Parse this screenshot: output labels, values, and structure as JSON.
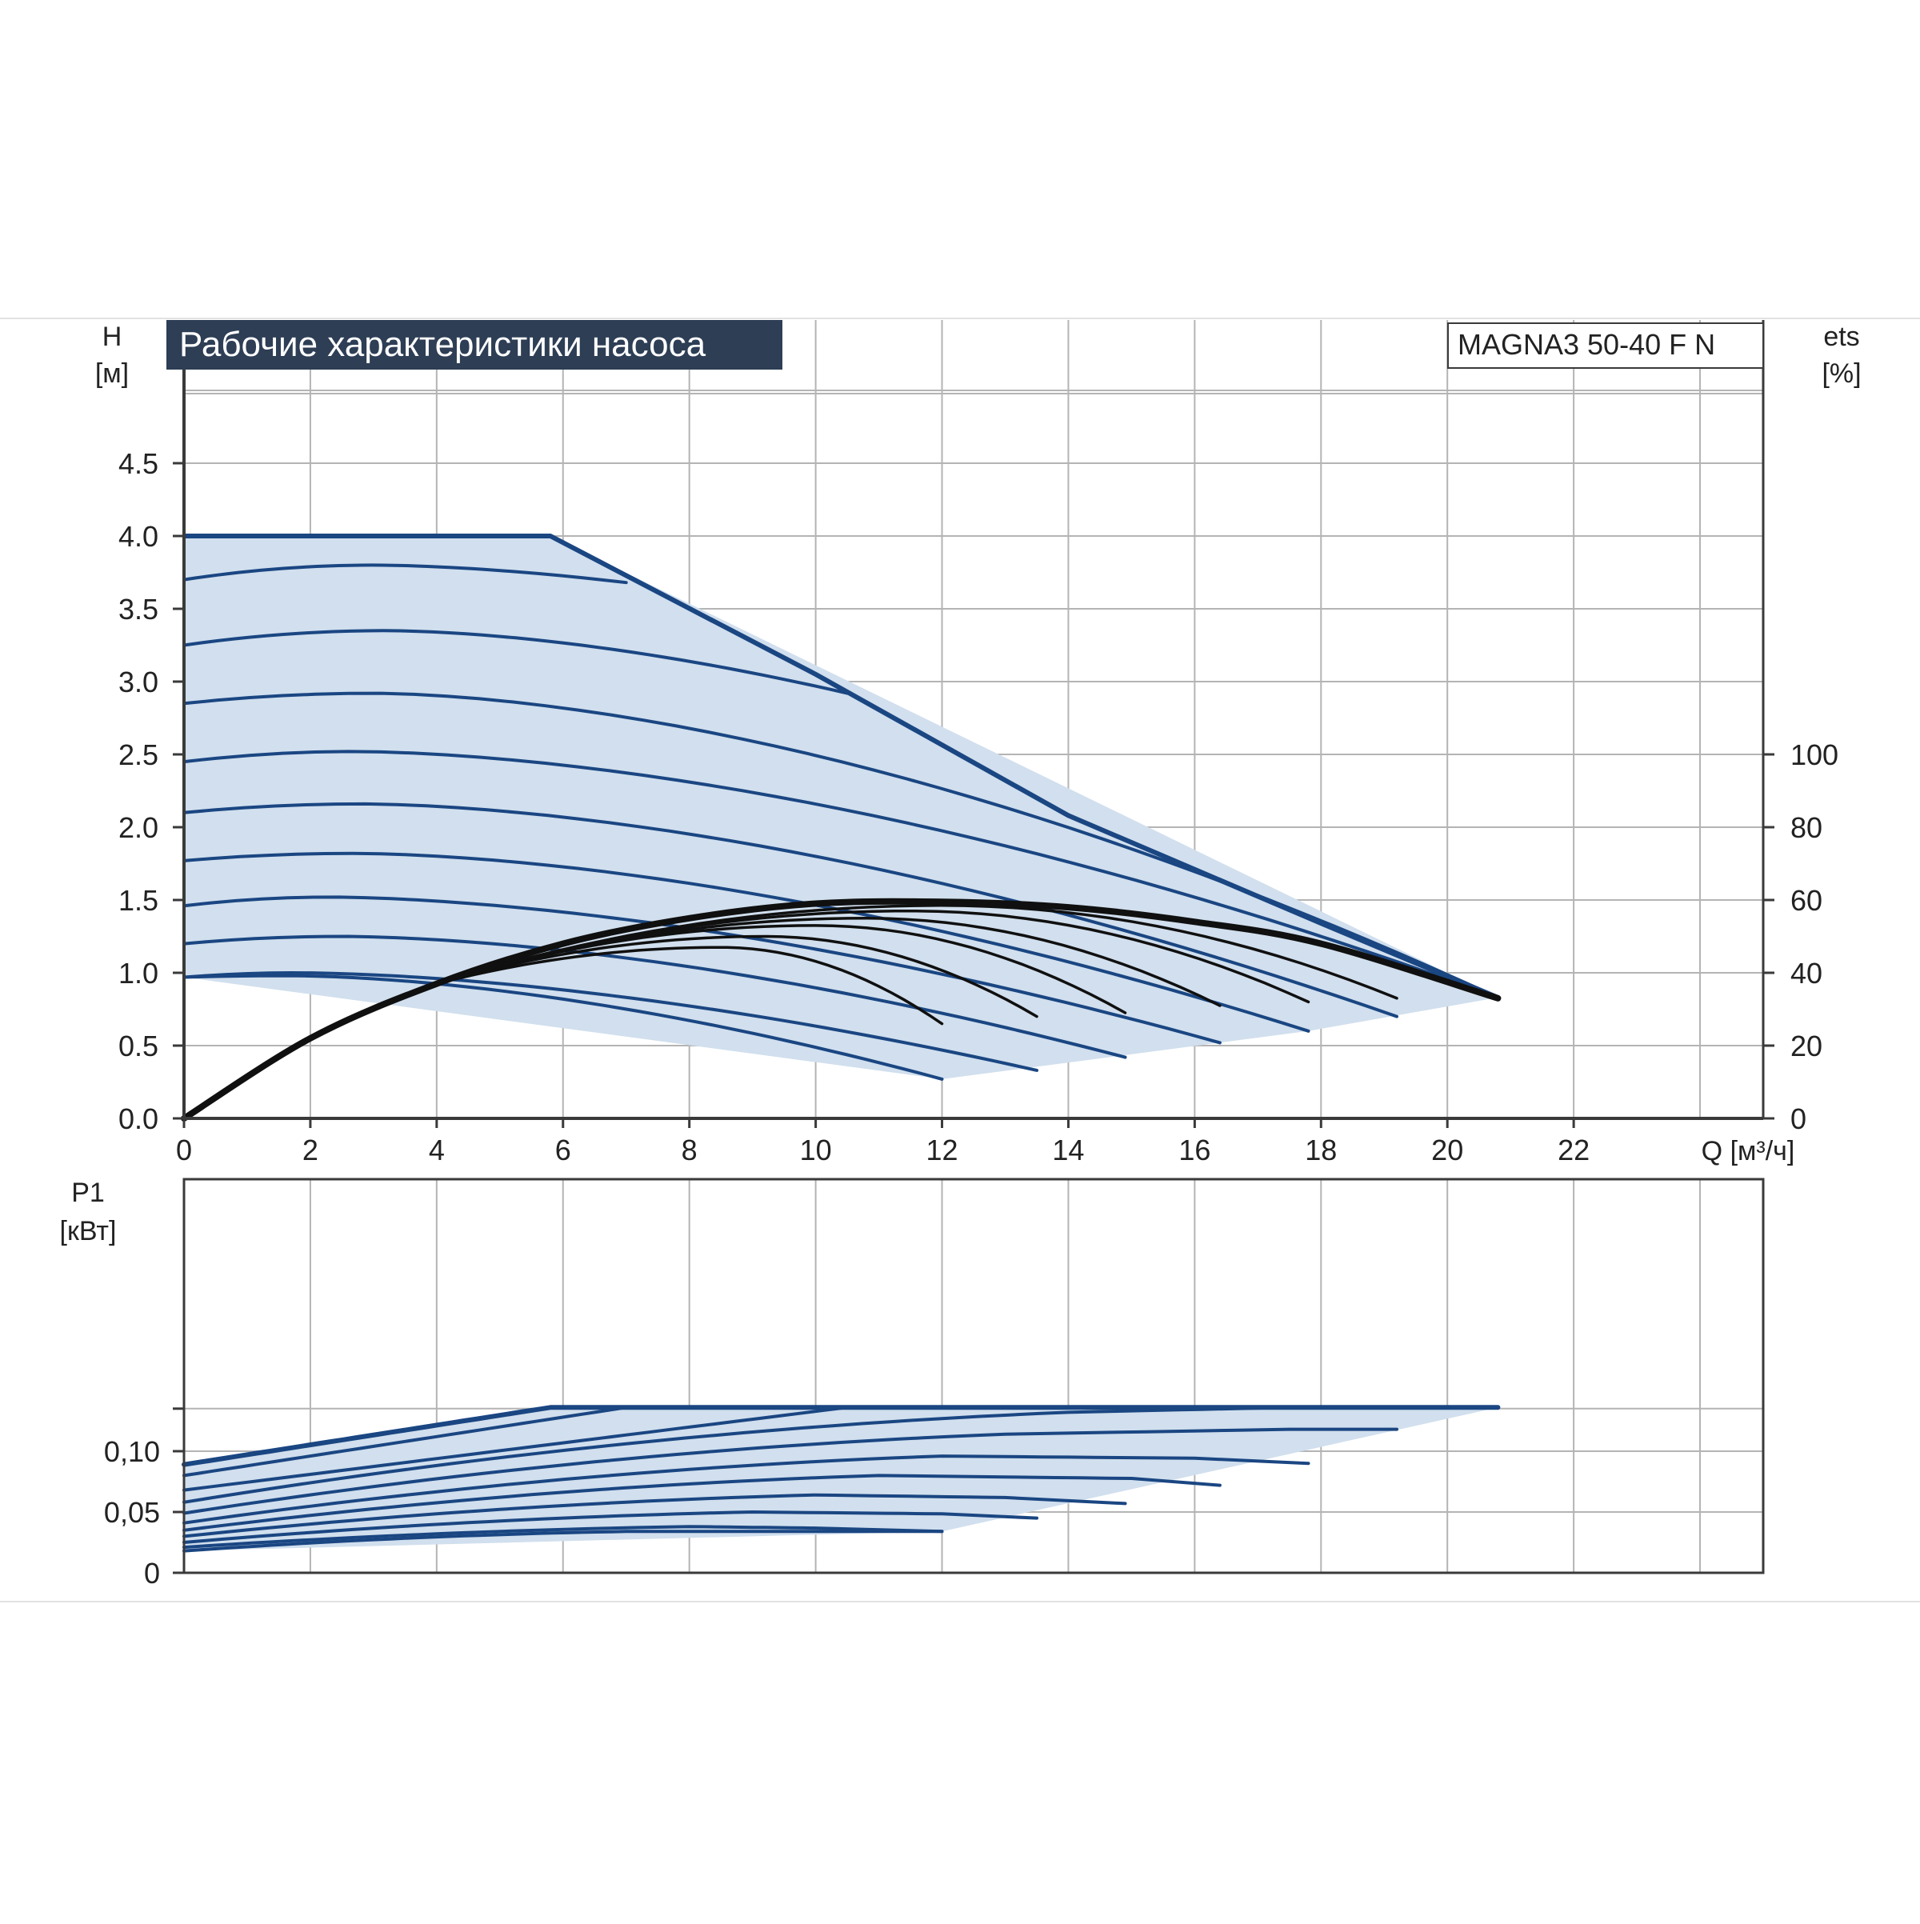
{
  "colors": {
    "grid": "#b4b4b4",
    "frame": "#3a3a3a",
    "envelope_fill": "#d1dfee",
    "curve_blue": "#1a4682",
    "curve_black": "#101010",
    "title_bg": "#2d3e55",
    "title_text": "#ffffff",
    "text": "#222222"
  },
  "title": "Рабочие характеристики насоса",
  "model": "MAGNA3 50-40 F N",
  "chart_data": [
    {
      "id": "head",
      "type": "line",
      "y_label": "H",
      "y_unit": "[м]",
      "y2_label": "ets",
      "y2_unit": "[%]",
      "x_label": "Q [м³/ч]",
      "xlim": [
        0,
        25
      ],
      "ylim": [
        0,
        5
      ],
      "y2lim": [
        0,
        125
      ],
      "grid": true,
      "x_ticks": [
        "0",
        "2",
        "4",
        "6",
        "8",
        "10",
        "12",
        "14",
        "16",
        "18",
        "20",
        "22"
      ],
      "y_ticks": [
        "0.0",
        "0.5",
        "1.0",
        "1.5",
        "2.0",
        "2.5",
        "3.0",
        "3.5",
        "4.0",
        "4.5"
      ],
      "y2_ticks": [
        "0",
        "20",
        "40",
        "60",
        "80",
        "100"
      ],
      "envelope": [
        [
          0,
          4.0
        ],
        [
          5.8,
          4.0
        ],
        [
          20.8,
          0.83
        ],
        [
          17.8,
          0.6
        ],
        [
          12.0,
          0.27
        ],
        [
          0,
          0.97
        ]
      ],
      "max_curve": [
        [
          0,
          4.0
        ],
        [
          5.8,
          4.0
        ],
        [
          10.0,
          3.05
        ],
        [
          14.0,
          2.08
        ],
        [
          18.0,
          1.34
        ],
        [
          20.8,
          0.83
        ]
      ],
      "head_curves": [
        {
          "h0": 3.7,
          "hmax": 3.8,
          "qpk": 3.0,
          "qend": 7.0
        },
        {
          "h0": 3.25,
          "hmax": 3.35,
          "qpk": 3.2,
          "qend": 10.5
        },
        {
          "h0": 2.85,
          "hmax": 2.92,
          "qpk": 3.0,
          "qend": 20.8
        },
        {
          "h0": 2.45,
          "hmax": 2.52,
          "qpk": 2.7,
          "qend": 20.8
        },
        {
          "h0": 2.1,
          "hmax": 2.16,
          "qpk": 2.8,
          "qend": 19.2
        },
        {
          "h0": 1.77,
          "hmax": 1.82,
          "qpk": 2.7,
          "qend": 17.8
        },
        {
          "h0": 1.46,
          "hmax": 1.52,
          "qpk": 2.3,
          "qend": 16.4
        },
        {
          "h0": 1.2,
          "hmax": 1.25,
          "qpk": 2.5,
          "qend": 14.9
        },
        {
          "h0": 0.97,
          "hmax": 1.0,
          "qpk": 1.8,
          "qend": 13.5
        },
        {
          "h0": 0.97,
          "hmax": 0.98,
          "qpk": 1.7,
          "qend": 12.0
        }
      ],
      "efficiency_max": [
        [
          0,
          0
        ],
        [
          2,
          22
        ],
        [
          4,
          37
        ],
        [
          6,
          48
        ],
        [
          8,
          55
        ],
        [
          10,
          59
        ],
        [
          12,
          59.5
        ],
        [
          14,
          58
        ],
        [
          16,
          54
        ],
        [
          18,
          48
        ],
        [
          20.8,
          33
        ]
      ],
      "efficiency_curves": [
        {
          "peak": 47,
          "qpk": 8.5,
          "qend": 12.0,
          "yend": 26
        },
        {
          "peak": 50,
          "qpk": 9.2,
          "qend": 13.5,
          "yend": 28
        },
        {
          "peak": 53,
          "qpk": 10.0,
          "qend": 14.9,
          "yend": 29
        },
        {
          "peak": 55,
          "qpk": 10.8,
          "qend": 16.4,
          "yend": 31
        },
        {
          "peak": 57,
          "qpk": 11.5,
          "qend": 17.8,
          "yend": 32
        },
        {
          "peak": 58.5,
          "qpk": 12.0,
          "qend": 19.2,
          "yend": 33
        }
      ]
    },
    {
      "id": "power",
      "type": "line",
      "y_label": "P1",
      "y_unit": "[кВт]",
      "xlim": [
        0,
        25
      ],
      "ylim": [
        0,
        0.148
      ],
      "grid": true,
      "y_ticks": [
        "0",
        "0,05",
        "0,10"
      ],
      "envelope": [
        [
          0,
          0.089
        ],
        [
          5.8,
          0.136
        ],
        [
          20.8,
          0.136
        ],
        [
          12.0,
          0.034
        ],
        [
          0,
          0.018
        ]
      ],
      "power_curves": [
        {
          "p0": 0.089,
          "q1": 5.8,
          "p1": 0.136,
          "q2": 5.8,
          "pend": 0.136,
          "qend": 20.8
        },
        {
          "p0": 0.08,
          "q1": 7.0,
          "p1": 0.136,
          "q2": 7.0,
          "pend": 0.136,
          "qend": 20.8
        },
        {
          "p0": 0.068,
          "q1": 10.5,
          "p1": 0.136,
          "q2": 10.5,
          "pend": 0.136,
          "qend": 20.8
        },
        {
          "p0": 0.058,
          "q1": 14.0,
          "p1": 0.132,
          "q2": 17.5,
          "pend": 0.136,
          "qend": 20.8
        },
        {
          "p0": 0.049,
          "q1": 13.0,
          "p1": 0.114,
          "q2": 17.5,
          "pend": 0.118,
          "qend": 19.2
        },
        {
          "p0": 0.041,
          "q1": 12.0,
          "p1": 0.096,
          "q2": 16.0,
          "pend": 0.09,
          "qend": 17.8
        },
        {
          "p0": 0.035,
          "q1": 11.0,
          "p1": 0.08,
          "q2": 15.0,
          "pend": 0.072,
          "qend": 16.4
        },
        {
          "p0": 0.03,
          "q1": 10.0,
          "p1": 0.064,
          "q2": 13.0,
          "pend": 0.057,
          "qend": 14.9
        },
        {
          "p0": 0.025,
          "q1": 9.0,
          "p1": 0.05,
          "q2": 12.0,
          "pend": 0.045,
          "qend": 13.5
        },
        {
          "p0": 0.021,
          "q1": 8.0,
          "p1": 0.038,
          "q2": 10.0,
          "pend": 0.034,
          "qend": 12.0
        },
        {
          "p0": 0.018,
          "q1": 7.0,
          "p1": 0.034,
          "q2": 10.0,
          "pend": 0.034,
          "qend": 12.0
        }
      ]
    }
  ]
}
